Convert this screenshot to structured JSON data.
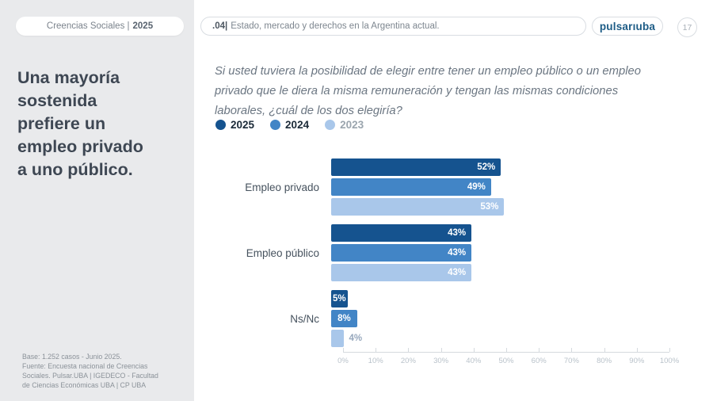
{
  "sidebar": {
    "tab_label": "Creencias Sociales |",
    "tab_year": "2025",
    "headline_lines": [
      "Una mayoría",
      "sostenida",
      "prefiere un",
      "empleo privado",
      "a uno público."
    ],
    "source_lines": [
      "Base: 1.252 casos - Junio 2025.",
      "Fuente: Encuesta nacional de Creencias",
      "Sociales. Pulsar.UBA | IGEDECO - Facultad",
      "de Ciencias Económicas UBA | CP UBA"
    ]
  },
  "header": {
    "section_number": ".04|",
    "section_title": "Estado, mercado y derechos en la Argentina actual.",
    "logo_text": "pulsarıuba",
    "page_number": "17"
  },
  "main": {
    "question_lines": [
      "Si usted tuviera la posibilidad de elegir entre tener un empleo público o un empleo",
      "privado que le diera la misma remuneración y tengan las mismas condiciones",
      "laborales, ¿cuál de los dos elegiría?"
    ]
  },
  "chart_data": {
    "type": "bar",
    "orientation": "horizontal",
    "title": "",
    "categories": [
      "Empleo privado",
      "Empleo público",
      "Ns/Nc"
    ],
    "series": [
      {
        "name": "2025",
        "color": "#15538f",
        "legend_text_color": "#1b2a38",
        "values": [
          52,
          43,
          5
        ]
      },
      {
        "name": "2024",
        "color": "#4285c6",
        "legend_text_color": "#1b2a38",
        "values": [
          49,
          43,
          8
        ]
      },
      {
        "name": "2023",
        "color": "#a9c7ea",
        "legend_text_color": "#9ba5ae",
        "values": [
          53,
          43,
          4
        ]
      }
    ],
    "value_suffix": "%",
    "xlim": [
      0,
      100
    ],
    "x_ticks": [
      "0%",
      "10%",
      "20%",
      "30%",
      "40%",
      "50%",
      "60%",
      "70%",
      "80%",
      "90%",
      "100%"
    ],
    "legend_position": "top",
    "grid": false
  }
}
